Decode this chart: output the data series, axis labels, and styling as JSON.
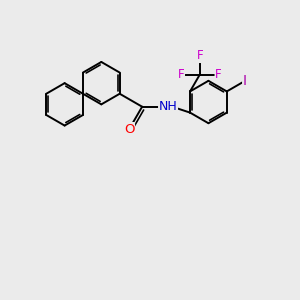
{
  "background_color": "#ebebeb",
  "bond_color": "#000000",
  "bond_width": 1.4,
  "atom_colors": {
    "O": "#ff0000",
    "N": "#0000cc",
    "F": "#cc00cc",
    "I": "#aa00aa",
    "C": "#000000"
  },
  "font_size": 8.5,
  "figsize": [
    3.0,
    3.0
  ],
  "dpi": 100
}
